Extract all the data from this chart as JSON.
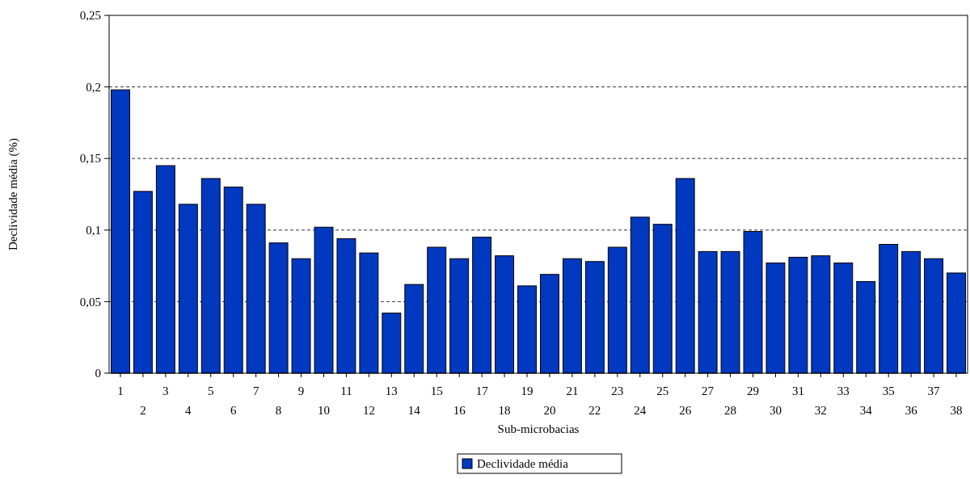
{
  "chart_data": {
    "type": "bar",
    "xlabel": "Sub-microbacias",
    "ylabel": "Declividade média (%)",
    "categories": [
      "1",
      "2",
      "3",
      "4",
      "5",
      "6",
      "7",
      "8",
      "9",
      "10",
      "11",
      "12",
      "13",
      "14",
      "15",
      "16",
      "17",
      "18",
      "19",
      "20",
      "21",
      "22",
      "23",
      "24",
      "25",
      "26",
      "27",
      "28",
      "29",
      "30",
      "31",
      "32",
      "33",
      "34",
      "35",
      "36",
      "37",
      "38"
    ],
    "series": [
      {
        "name": "Declividade média",
        "color": "#0038c0",
        "values": [
          0.198,
          0.127,
          0.145,
          0.118,
          0.136,
          0.13,
          0.118,
          0.091,
          0.08,
          0.102,
          0.094,
          0.084,
          0.042,
          0.062,
          0.088,
          0.08,
          0.095,
          0.082,
          0.061,
          0.069,
          0.08,
          0.078,
          0.088,
          0.109,
          0.104,
          0.136,
          0.085,
          0.085,
          0.099,
          0.077,
          0.081,
          0.082,
          0.077,
          0.064,
          0.09,
          0.085,
          0.08,
          0.07
        ]
      }
    ],
    "ylim": [
      0,
      0.25
    ],
    "yticks": [
      0,
      {
        "value": 0.05,
        "label": "0,05"
      },
      {
        "value": 0.1,
        "label": "0,1"
      },
      {
        "value": 0.15,
        "label": "0,15"
      },
      {
        "value": 0.2,
        "label": "0,2"
      },
      {
        "value": 0.25,
        "label": "0,25"
      }
    ],
    "grid": "y",
    "legend": "bottom"
  }
}
